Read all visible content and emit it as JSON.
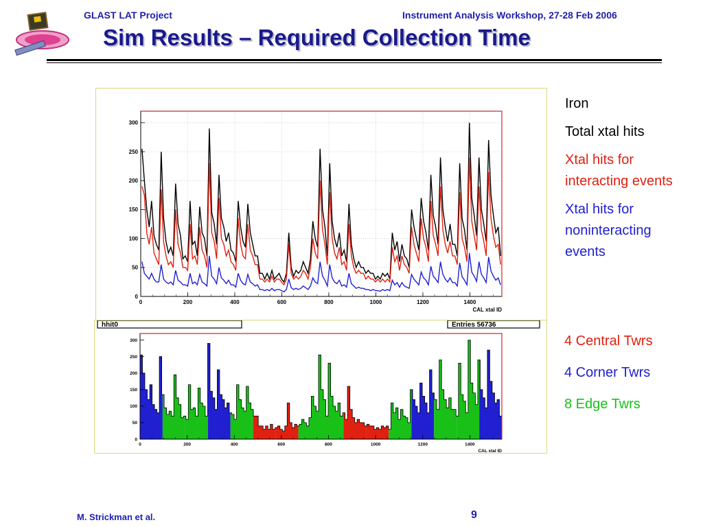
{
  "header": {
    "project": "GLAST LAT Project",
    "workshop": "Instrument Analysis Workshop, 27-28 Feb 2006",
    "title": "Sim Results – Required Collection Time"
  },
  "footer": {
    "author": "M. Strickman et al.",
    "page": "9"
  },
  "sidebar": {
    "material": "Iron",
    "total": "Total xtal hits",
    "interacting": "Xtal hits for interacting events",
    "noninteracting": "Xtal hits for noninteracting events",
    "colors": {
      "total": "#000000",
      "interacting": "#e02010",
      "noninteracting": "#2020d0"
    }
  },
  "legend2": {
    "central": "4 Central Twrs",
    "corner": "4 Corner Twrs",
    "edge": "8 Edge Twrs",
    "colors": {
      "central": "#e02010",
      "corner": "#2020d0",
      "edge": "#18c018"
    }
  },
  "chart_data": [
    {
      "type": "line",
      "xlabel": "CAL xtal ID",
      "ylabel": "",
      "xlim": [
        0,
        1536
      ],
      "ylim": [
        0,
        320
      ],
      "xticks": [
        "0",
        "200",
        "400",
        "600",
        "800",
        "1000",
        "1200",
        "1400"
      ],
      "yticks": [
        "0",
        "50",
        "100",
        "150",
        "200",
        "250",
        "300"
      ],
      "grid": true,
      "series": [
        {
          "name": "Total xtal hits",
          "color": "#000000",
          "values": [
            255,
            200,
            150,
            120,
            165,
            105,
            90,
            80,
            250,
            135,
            95,
            75,
            85,
            70,
            195,
            125,
            105,
            65,
            70,
            60,
            165,
            90,
            95,
            70,
            155,
            110,
            100,
            70,
            290,
            145,
            125,
            90,
            210,
            135,
            120,
            95,
            110,
            80,
            75,
            60,
            165,
            120,
            95,
            85,
            160,
            110,
            90,
            70,
            70,
            40,
            40,
            30,
            40,
            30,
            45,
            30,
            35,
            40,
            30,
            25,
            40,
            110,
            50,
            35,
            45,
            40,
            45,
            60,
            50,
            40,
            65,
            130,
            100,
            85,
            255,
            150,
            120,
            70,
            230,
            130,
            100,
            85,
            110,
            70,
            80,
            60,
            160,
            90,
            65,
            50,
            60,
            50,
            50,
            40,
            45,
            40,
            40,
            30,
            35,
            30,
            40,
            35,
            40,
            30,
            110,
            80,
            95,
            60,
            90,
            70,
            65,
            50,
            150,
            120,
            100,
            80,
            170,
            130,
            110,
            80,
            210,
            140,
            120,
            90,
            240,
            150,
            120,
            95,
            125,
            90,
            90,
            70,
            230,
            135,
            115,
            80,
            300,
            170,
            140,
            105,
            240,
            150,
            125,
            95,
            270,
            175,
            140,
            110,
            120,
            70
          ]
        },
        {
          "name": "Xtal hits for interacting events",
          "color": "#e02010",
          "values": [
            190,
            175,
            110,
            90,
            120,
            75,
            65,
            55,
            185,
            95,
            70,
            55,
            60,
            50,
            150,
            90,
            75,
            50,
            50,
            45,
            125,
            65,
            70,
            55,
            120,
            80,
            70,
            50,
            230,
            110,
            95,
            65,
            170,
            100,
            90,
            70,
            80,
            60,
            55,
            45,
            135,
            90,
            70,
            65,
            125,
            80,
            70,
            55,
            55,
            30,
            30,
            25,
            30,
            25,
            35,
            25,
            30,
            30,
            25,
            20,
            30,
            90,
            40,
            30,
            35,
            30,
            35,
            45,
            40,
            30,
            50,
            100,
            75,
            65,
            200,
            115,
            90,
            55,
            180,
            100,
            75,
            65,
            85,
            55,
            60,
            45,
            125,
            70,
            50,
            40,
            45,
            40,
            40,
            30,
            35,
            30,
            30,
            25,
            30,
            25,
            30,
            25,
            30,
            25,
            85,
            60,
            70,
            45,
            70,
            55,
            50,
            40,
            120,
            90,
            75,
            60,
            135,
            100,
            85,
            60,
            165,
            105,
            90,
            70,
            190,
            115,
            90,
            75,
            95,
            70,
            70,
            55,
            180,
            100,
            85,
            60,
            240,
            130,
            105,
            80,
            190,
            115,
            95,
            70,
            215,
            135,
            105,
            85,
            90,
            55
          ]
        },
        {
          "name": "Xtal hits for noninteracting events",
          "color": "#2020d0",
          "values": [
            60,
            40,
            35,
            30,
            40,
            30,
            25,
            25,
            55,
            30,
            25,
            22,
            25,
            20,
            45,
            28,
            25,
            20,
            20,
            18,
            40,
            22,
            25,
            20,
            38,
            25,
            22,
            18,
            70,
            35,
            30,
            22,
            50,
            32,
            28,
            22,
            28,
            20,
            20,
            16,
            40,
            28,
            22,
            20,
            38,
            25,
            22,
            18,
            20,
            12,
            12,
            10,
            12,
            10,
            14,
            10,
            12,
            12,
            10,
            8,
            12,
            30,
            15,
            12,
            14,
            12,
            14,
            18,
            15,
            12,
            18,
            32,
            25,
            22,
            60,
            35,
            28,
            18,
            55,
            32,
            25,
            22,
            28,
            18,
            20,
            16,
            40,
            22,
            18,
            14,
            16,
            14,
            14,
            12,
            12,
            10,
            12,
            10,
            10,
            9,
            12,
            10,
            12,
            10,
            28,
            20,
            24,
            16,
            24,
            18,
            16,
            14,
            38,
            30,
            25,
            20,
            42,
            32,
            28,
            20,
            52,
            35,
            30,
            24,
            60,
            38,
            30,
            25,
            32,
            24,
            24,
            18,
            58,
            34,
            28,
            20,
            75,
            42,
            35,
            26,
            60,
            38,
            32,
            24,
            68,
            44,
            35,
            28,
            32,
            20
          ]
        }
      ]
    },
    {
      "type": "area",
      "title": "hhit0",
      "stats": "Entries    56736",
      "xlabel": "CAL xtal ID",
      "ylabel": "",
      "xlim": [
        0,
        1536
      ],
      "ylim": [
        0,
        320
      ],
      "xticks": [
        "0",
        "200",
        "400",
        "600",
        "800",
        "1000",
        "1200",
        "1400"
      ],
      "yticks": [
        "0",
        "50",
        "100",
        "150",
        "200",
        "250",
        "300"
      ],
      "towers": [
        "corner",
        "edge",
        "edge",
        "corner",
        "edge",
        "central",
        "central",
        "edge",
        "edge",
        "central",
        "central",
        "edge",
        "corner",
        "edge",
        "edge",
        "corner"
      ],
      "values": [
        255,
        200,
        150,
        120,
        165,
        105,
        90,
        80,
        250,
        135,
        95,
        75,
        85,
        70,
        195,
        125,
        105,
        65,
        70,
        60,
        165,
        90,
        95,
        70,
        155,
        110,
        100,
        70,
        290,
        145,
        125,
        90,
        210,
        135,
        120,
        95,
        110,
        80,
        75,
        60,
        165,
        120,
        95,
        85,
        160,
        110,
        90,
        70,
        70,
        40,
        40,
        30,
        40,
        30,
        45,
        30,
        35,
        40,
        30,
        25,
        40,
        110,
        50,
        35,
        45,
        40,
        45,
        60,
        50,
        40,
        65,
        130,
        100,
        85,
        255,
        150,
        120,
        70,
        230,
        130,
        100,
        85,
        110,
        70,
        80,
        60,
        160,
        90,
        65,
        50,
        60,
        50,
        50,
        40,
        45,
        40,
        40,
        30,
        35,
        30,
        40,
        35,
        40,
        30,
        110,
        80,
        95,
        60,
        90,
        70,
        65,
        50,
        150,
        120,
        100,
        80,
        170,
        130,
        110,
        80,
        210,
        140,
        120,
        90,
        240,
        150,
        120,
        95,
        125,
        90,
        90,
        70,
        230,
        135,
        115,
        80,
        300,
        170,
        140,
        105,
        240,
        150,
        125,
        95,
        270,
        175,
        140,
        110,
        120,
        70
      ]
    }
  ]
}
